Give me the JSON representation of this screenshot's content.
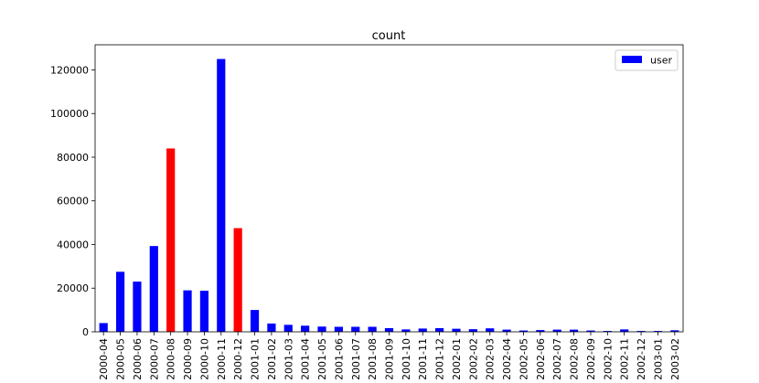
{
  "chart_data": {
    "type": "bar",
    "title": "count",
    "xlabel": "",
    "ylabel": "",
    "ylim": [
      0,
      131500
    ],
    "yticks": [
      0,
      20000,
      40000,
      60000,
      80000,
      100000,
      120000
    ],
    "grid": false,
    "legend_position": "top-right",
    "series": [
      {
        "name": "user",
        "color": "#0000ff"
      }
    ],
    "highlight_color": "#ff0000",
    "categories": [
      "2000-04",
      "2000-05",
      "2000-06",
      "2000-07",
      "2000-08",
      "2000-09",
      "2000-10",
      "2000-11",
      "2000-12",
      "2001-01",
      "2001-02",
      "2001-03",
      "2001-04",
      "2001-05",
      "2001-06",
      "2001-07",
      "2001-08",
      "2001-09",
      "2001-10",
      "2001-11",
      "2001-12",
      "2002-01",
      "2002-02",
      "2002-03",
      "2002-04",
      "2002-05",
      "2002-06",
      "2002-07",
      "2002-08",
      "2002-09",
      "2002-10",
      "2002-11",
      "2002-12",
      "2003-01",
      "2003-02"
    ],
    "values": [
      4000,
      27500,
      23000,
      39300,
      84000,
      19000,
      18800,
      125000,
      47500,
      10000,
      3800,
      3200,
      2800,
      2400,
      2300,
      2300,
      2300,
      1700,
      1100,
      1500,
      1700,
      1400,
      1200,
      1600,
      1000,
      600,
      800,
      1000,
      1000,
      600,
      400,
      1100,
      400,
      400,
      700
    ],
    "bar_colors": [
      "#0000ff",
      "#0000ff",
      "#0000ff",
      "#0000ff",
      "#ff0000",
      "#0000ff",
      "#0000ff",
      "#0000ff",
      "#ff0000",
      "#0000ff",
      "#0000ff",
      "#0000ff",
      "#0000ff",
      "#0000ff",
      "#0000ff",
      "#0000ff",
      "#0000ff",
      "#0000ff",
      "#0000ff",
      "#0000ff",
      "#0000ff",
      "#0000ff",
      "#0000ff",
      "#0000ff",
      "#0000ff",
      "#0000ff",
      "#0000ff",
      "#0000ff",
      "#0000ff",
      "#0000ff",
      "#0000ff",
      "#0000ff",
      "#0000ff",
      "#0000ff",
      "#0000ff"
    ]
  }
}
